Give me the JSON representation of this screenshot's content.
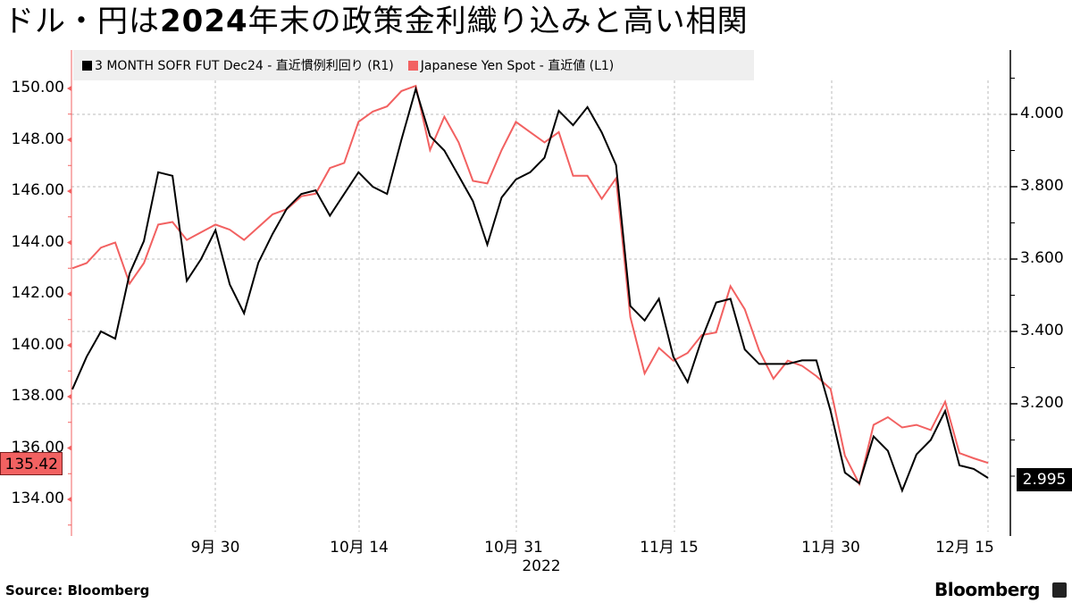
{
  "title": {
    "prefix": "ドル・円は",
    "bold": "2024",
    "suffix": "年末の政策金利織り込みと高い相関"
  },
  "legend": [
    {
      "label": "3 MONTH SOFR FUT Dec24 - 直近慣例利回り (R1)",
      "color": "#000000"
    },
    {
      "label": "Japanese Yen Spot - 直近値 (L1)",
      "color": "#f26161"
    }
  ],
  "left_axis": {
    "ticks": [
      "150.00",
      "148.00",
      "146.00",
      "144.00",
      "142.00",
      "140.00",
      "138.00",
      "136.00",
      "134.00"
    ],
    "last_value": "135.42"
  },
  "right_axis": {
    "ticks": [
      "4.000",
      "3.800",
      "3.600",
      "3.400",
      "3.200"
    ],
    "last_value": "2.995"
  },
  "x_axis": {
    "ticks": [
      "9月 30",
      "10月 14",
      "10月 31",
      "11月 15",
      "11月 30",
      "12月 15"
    ],
    "year": "2022"
  },
  "footer": {
    "source": "Source: Bloomberg",
    "brand": "Bloomberg"
  },
  "colors": {
    "yen": "#f26161",
    "sofr": "#000000",
    "legend_bg": "#efefef",
    "grid": "#bbbbbb"
  },
  "chart_data": {
    "type": "line",
    "title": "ドル・円は2024年末の政策金利織り込みと高い相関",
    "xlabel": "2022",
    "x_ticks": [
      "9月 30",
      "10月 14",
      "10月 31",
      "11月 15",
      "11月 30",
      "12月 15"
    ],
    "x_range": [
      "2022-09-19",
      "2022-12-16"
    ],
    "series": [
      {
        "name": "3 MONTH SOFR FUT Dec24 - 直近慣例利回り (R1)",
        "axis": "right",
        "color": "#000000",
        "ylim": [
          2.92,
          4.13
        ],
        "values": [
          3.24,
          3.33,
          3.4,
          3.38,
          3.56,
          3.65,
          3.84,
          3.83,
          3.54,
          3.6,
          3.68,
          3.53,
          3.45,
          3.59,
          3.67,
          3.74,
          3.78,
          3.79,
          3.72,
          3.78,
          3.84,
          3.8,
          3.78,
          3.93,
          4.07,
          3.94,
          3.9,
          3.83,
          3.76,
          3.64,
          3.77,
          3.82,
          3.84,
          3.88,
          4.01,
          3.97,
          4.02,
          3.95,
          3.86,
          3.47,
          3.43,
          3.49,
          3.33,
          3.26,
          3.38,
          3.48,
          3.49,
          3.35,
          3.31,
          3.31,
          3.31,
          3.32,
          3.32,
          3.18,
          3.01,
          2.98,
          3.11,
          3.07,
          2.96,
          3.06,
          3.1,
          3.18,
          3.03,
          3.02,
          2.995
        ]
      },
      {
        "name": "Japanese Yen Spot - 直近値 (L1)",
        "axis": "left",
        "color": "#f26161",
        "ylim": [
          132.8,
          151.0
        ],
        "values": [
          143.0,
          143.2,
          143.8,
          144.0,
          142.4,
          143.2,
          144.7,
          144.8,
          144.1,
          144.4,
          144.7,
          144.5,
          144.1,
          144.6,
          145.1,
          145.3,
          145.8,
          145.9,
          146.9,
          147.1,
          148.7,
          149.1,
          149.3,
          149.9,
          150.1,
          147.6,
          148.9,
          147.9,
          146.4,
          146.3,
          147.6,
          148.7,
          148.3,
          147.9,
          148.3,
          146.6,
          146.6,
          145.7,
          146.5,
          141.1,
          138.9,
          139.9,
          139.4,
          139.7,
          140.4,
          140.5,
          142.3,
          141.4,
          139.8,
          138.7,
          139.4,
          139.2,
          138.8,
          138.3,
          135.7,
          134.6,
          136.9,
          137.2,
          136.8,
          136.9,
          136.7,
          137.8,
          135.8,
          135.6,
          135.42
        ]
      }
    ],
    "left_axis": {
      "ticks": [
        150,
        148,
        146,
        144,
        142,
        140,
        138,
        136,
        134
      ],
      "range": [
        132.8,
        151.0
      ]
    },
    "right_axis": {
      "ticks": [
        4.0,
        3.8,
        3.6,
        3.4,
        3.2
      ],
      "range": [
        2.92,
        4.13
      ]
    },
    "annotations": [
      {
        "text": "135.42",
        "axis": "left",
        "series": "Japanese Yen Spot"
      },
      {
        "text": "2.995",
        "axis": "right",
        "series": "3 MONTH SOFR FUT Dec24"
      }
    ],
    "grid": true,
    "legend_position": "top-left"
  }
}
